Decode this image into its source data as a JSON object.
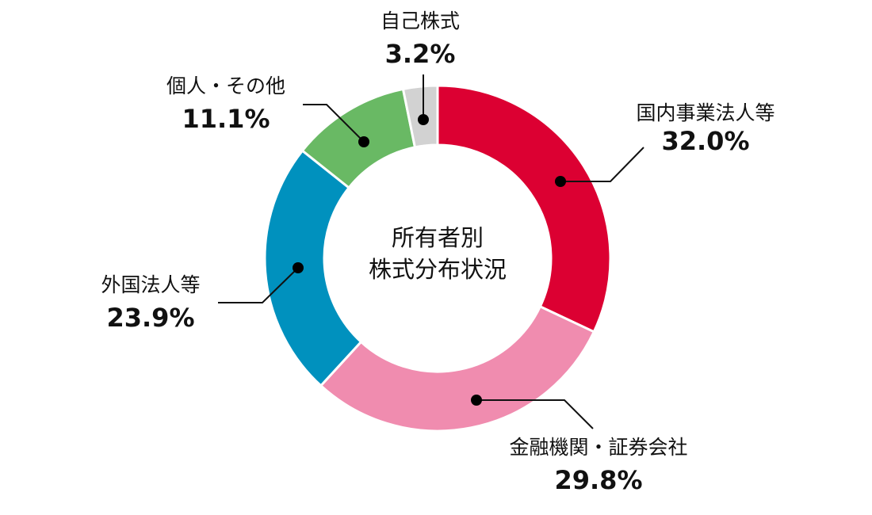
{
  "chart_data": {
    "type": "pie",
    "variant": "donut",
    "title": "所有者別株式分布状況",
    "center_label": [
      "所有者別",
      "株式分布状況"
    ],
    "unit": "%",
    "categories": [
      "国内事業法人等",
      "金融機関・証券会社",
      "外国法人等",
      "個人・その他",
      "自己株式"
    ],
    "values": [
      32.0,
      29.8,
      23.9,
      11.1,
      3.2
    ],
    "colors": [
      "#dc0032",
      "#f08caf",
      "#0091be",
      "#69b964",
      "#d2d2d2"
    ],
    "start_angle": "12 o'clock",
    "direction": "clockwise",
    "legend": "callout labels with leader lines"
  },
  "labels": [
    {
      "name": "国内事業法人等",
      "pct": "32.0%"
    },
    {
      "name": "金融機関・証券会社",
      "pct": "29.8%"
    },
    {
      "name": "外国法人等",
      "pct": "23.9%"
    },
    {
      "name": "個人・その他",
      "pct": "11.1%"
    },
    {
      "name": "自己株式",
      "pct": "3.2%"
    }
  ],
  "center": {
    "line1": "所有者別",
    "line2": "株式分布状況"
  }
}
